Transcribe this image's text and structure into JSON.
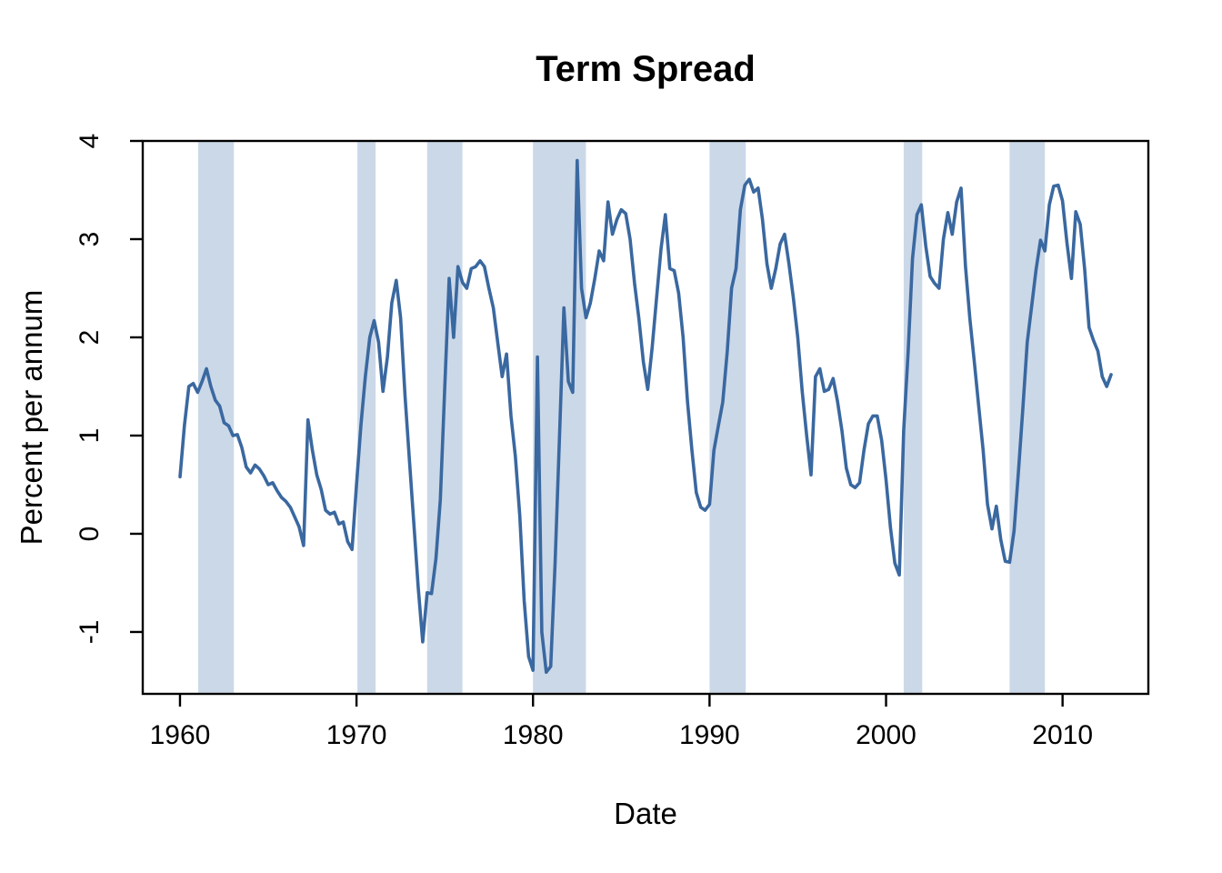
{
  "chart_data": {
    "type": "line",
    "title": "Term Spread",
    "xlabel": "Date",
    "ylabel": "Percent per annum",
    "x_ticks": [
      1960,
      1970,
      1980,
      1990,
      2000,
      2010
    ],
    "y_ticks": [
      -1,
      0,
      1,
      2,
      3,
      4
    ],
    "xlim": [
      1957.89,
      2014.86
    ],
    "ylim": [
      -1.63,
      4.0
    ],
    "grid": false,
    "legend": null,
    "frequency": "quarterly",
    "x_start": 1960.0,
    "x_step": 0.25,
    "values": [
      0.58,
      1.1,
      1.5,
      1.53,
      1.44,
      1.55,
      1.68,
      1.5,
      1.36,
      1.3,
      1.13,
      1.1,
      1.0,
      1.01,
      0.88,
      0.68,
      0.62,
      0.7,
      0.66,
      0.59,
      0.5,
      0.52,
      0.44,
      0.37,
      0.33,
      0.27,
      0.17,
      0.07,
      -0.12,
      1.16,
      0.85,
      0.6,
      0.45,
      0.24,
      0.2,
      0.22,
      0.1,
      0.12,
      -0.08,
      -0.16,
      0.5,
      1.11,
      1.6,
      2.0,
      2.17,
      1.95,
      1.45,
      1.8,
      2.35,
      2.58,
      2.2,
      1.4,
      0.75,
      0.1,
      -0.55,
      -1.1,
      -0.6,
      -0.61,
      -0.25,
      0.35,
      1.5,
      2.6,
      2.0,
      2.72,
      2.56,
      2.5,
      2.7,
      2.72,
      2.78,
      2.72,
      2.5,
      2.3,
      1.95,
      1.6,
      1.83,
      1.2,
      0.79,
      0.18,
      -0.68,
      -1.25,
      -1.39,
      1.8,
      -1.0,
      -1.41,
      -1.35,
      -0.3,
      1.0,
      2.3,
      1.55,
      1.44,
      3.8,
      2.5,
      2.2,
      2.35,
      2.6,
      2.88,
      2.78,
      3.38,
      3.05,
      3.2,
      3.3,
      3.26,
      3.0,
      2.55,
      2.19,
      1.75,
      1.47,
      1.9,
      2.4,
      2.9,
      3.25,
      2.7,
      2.68,
      2.45,
      2.0,
      1.35,
      0.85,
      0.42,
      0.27,
      0.24,
      0.3,
      0.85,
      1.1,
      1.34,
      1.85,
      2.5,
      2.7,
      3.3,
      3.55,
      3.61,
      3.48,
      3.52,
      3.2,
      2.75,
      2.5,
      2.7,
      2.95,
      3.05,
      2.75,
      2.4,
      2.0,
      1.45,
      1.0,
      0.6,
      1.6,
      1.68,
      1.45,
      1.47,
      1.58,
      1.35,
      1.05,
      0.67,
      0.5,
      0.47,
      0.52,
      0.85,
      1.12,
      1.2,
      1.2,
      0.95,
      0.55,
      0.06,
      -0.3,
      -0.42,
      1.05,
      1.85,
      2.8,
      3.25,
      3.35,
      2.93,
      2.62,
      2.55,
      2.5,
      3.0,
      3.27,
      3.05,
      3.38,
      3.52,
      2.72,
      2.19,
      1.75,
      1.3,
      0.85,
      0.3,
      0.05,
      0.28,
      -0.06,
      -0.28,
      -0.29,
      0.03,
      0.63,
      1.28,
      1.95,
      2.32,
      2.69,
      2.99,
      2.88,
      3.35,
      3.54,
      3.55,
      3.39,
      2.96,
      2.6,
      3.28,
      3.15,
      2.7,
      2.1,
      1.97,
      1.86,
      1.6,
      1.5,
      1.62
    ],
    "shaded_bands": [
      [
        1961.03,
        1963.05
      ],
      [
        1970.05,
        1971.08
      ],
      [
        1974.0,
        1976.0
      ],
      [
        1980.0,
        1983.0
      ],
      [
        1990.0,
        1992.05
      ],
      [
        2001.0,
        2002.05
      ],
      [
        2007.0,
        2009.0
      ]
    ],
    "band_meaning": "recession-shading",
    "line_color": "#3A68A0",
    "band_color": "#CBD8E8",
    "axis_color": "#000000"
  }
}
